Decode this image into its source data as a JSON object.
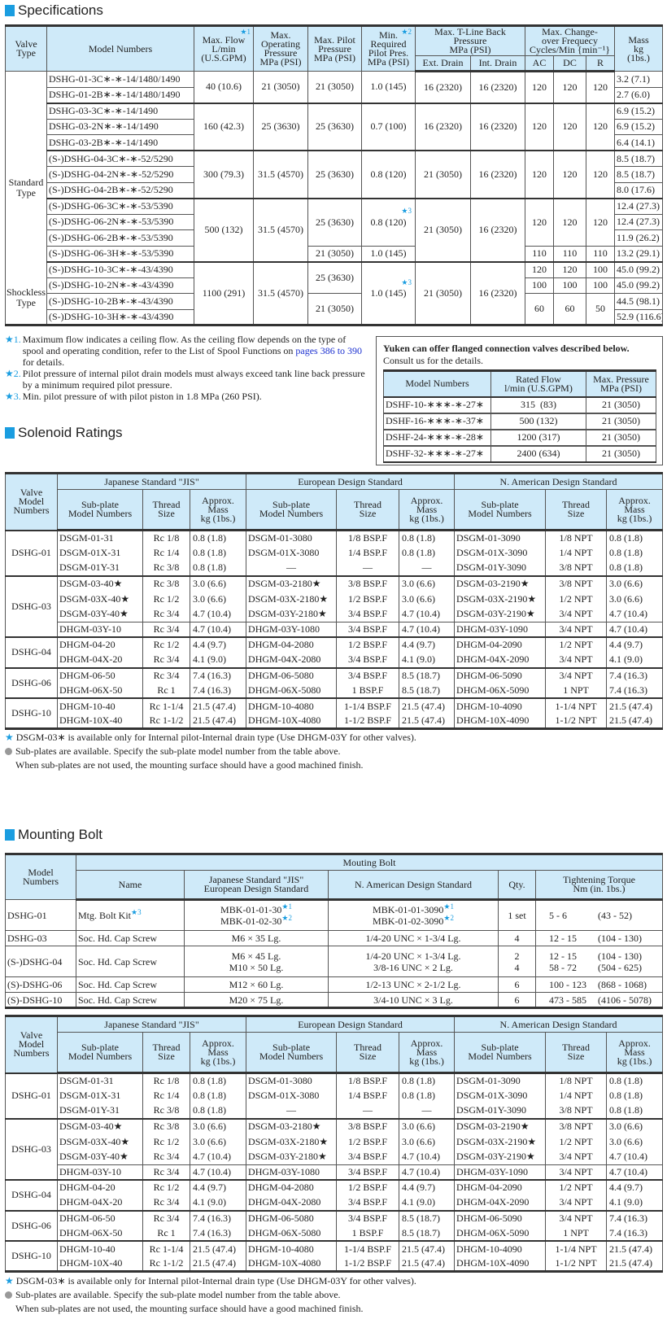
{
  "colors": {
    "accent": "#1a9de0",
    "header_bg": "#cfeaf9",
    "link": "#1a2fd0"
  },
  "specifications": {
    "title": "Specifications",
    "headers": {
      "valve_type": "Valve\nType",
      "model": "Model Numbers",
      "max_flow": "Max. Flow\nL/min\n(U.S.GPM)",
      "max_flow_note": "★1",
      "max_op": "Max.\nOperating\nPressure\nMPa (PSI)",
      "max_pilot": "Max. Pilot\nPressure\nMPa (PSI)",
      "min_pilot": "Min.\nRequired\nPilot Pres.\nMPa (PSI)",
      "min_pilot_note": "★2",
      "tline": "Max. T-Line Back\nPressure\nMPa (PSI)",
      "ext": "Ext. Drain",
      "int": "Int. Drain",
      "freq": "Max. Change-\nover Frequecy\nCycles/Min {min⁻¹}",
      "ac": "AC",
      "dc": "DC",
      "r": "R",
      "mass": "Mass\nkg\n(1bs.)"
    },
    "valve_types": [
      "Standard\nType",
      "Shockless\nType"
    ],
    "models": [
      "DSHG-01-3C∗-∗-14/1480/1490",
      "DSHG-01-2B∗-∗-14/1480/1490",
      "DSHG-03-3C∗-∗-14/1490",
      "DSHG-03-2N∗-∗-14/1490",
      "DSHG-03-2B∗-∗-14/1490",
      "(S-)DSHG-04-3C∗-∗-52/5290",
      "(S-)DSHG-04-2N∗-∗-52/5290",
      "(S-)DSHG-04-2B∗-∗-52/5290",
      "(S-)DSHG-06-3C∗-∗-53/5390",
      "(S-)DSHG-06-2N∗-∗-53/5390",
      "(S-)DSHG-06-2B∗-∗-53/5390",
      "(S-)DSHG-06-3H∗-∗-53/5390",
      "(S-)DSHG-10-3C∗-∗-43/4390",
      "(S-)DSHG-10-2N∗-∗-43/4390",
      "(S-)DSHG-10-2B∗-∗-43/4390",
      "(S-)DSHG-10-3H∗-∗-43/4390"
    ],
    "max_flow": [
      "40 (10.6)",
      "160 (42.3)",
      "300 (79.3)",
      "500 (132)",
      "1100 (291)"
    ],
    "max_op": [
      "21 (3050)",
      "25 (3630)",
      "31.5 (4570)",
      "31.5 (4570)",
      "31.5 (4570)"
    ],
    "max_pilot": [
      "21 (3050)",
      "25 (3630)",
      "25 (3630)",
      "25 (3630)",
      "21 (3050)",
      "25 (3630)",
      "21 (3050)"
    ],
    "min_pilot": [
      "1.0 (145)",
      "0.7 (100)",
      "0.8 (120)",
      "0.8 (120)",
      "1.0 (145)",
      "1.0 (145)"
    ],
    "min_pilot_note": "★3",
    "ext": [
      "16 (2320)",
      "16 (2320)",
      "21 (3050)",
      "21 (3050)",
      "21 (3050)"
    ],
    "int": [
      "16 (2320)",
      "16 (2320)",
      "16 (2320)",
      "16 (2320)",
      "16 (2320)"
    ],
    "freq": [
      [
        "120",
        "120",
        "120"
      ],
      [
        "120",
        "120",
        "120"
      ],
      [
        "120",
        "120",
        "120"
      ],
      [
        "120",
        "120",
        "120"
      ],
      [
        "110",
        "110",
        "110"
      ],
      [
        "120",
        "120",
        "100"
      ],
      [
        "100",
        "100",
        "100"
      ],
      [
        "60",
        "60",
        "50"
      ]
    ],
    "mass": [
      "3.2 (7.1)",
      "2.7 (6.0)",
      "6.9 (15.2)",
      "6.9 (15.2)",
      "6.4 (14.1)",
      "8.5 (18.7)",
      "8.5 (18.7)",
      "8.0 (17.6)",
      "12.4 (27.3)",
      "12.4 (27.3)",
      "11.9 (26.2)",
      "13.2 (29.1)",
      "45.0 (99.2)",
      "45.0 (99.2)",
      "44.5 (98.1)",
      "52.9 (116.6)"
    ],
    "notes": [
      {
        "key": "★1.",
        "a": "Maximum flow indicates a ceiling flow.  As the ceiling flow depends on the type of spool and operating condition, refer to the List of Spool Functions on ",
        "link": "pages 386 to 390",
        "b": " for details."
      },
      {
        "key": "★2.",
        "a": "Pilot pressure of internal pilot drain models must always exceed tank line back pressure by a minimum required pilot pressure."
      },
      {
        "key": "★3.",
        "a": "Min. pilot pressure of with pilot piston in 1.8 MPa (260 PSI)."
      }
    ]
  },
  "flanged": {
    "title": "Yuken can offer flanged connection valves described below.",
    "subtitle": "Consult us for the details.",
    "headers": [
      "Model Numbers",
      "Rated Flow\nl/min (U.S.GPM)",
      "Max. Pressure\nMPa (PSI)"
    ],
    "rows": [
      [
        "DSHF-10-∗∗∗-∗-27∗",
        "315  (83)",
        "21 (3050)"
      ],
      [
        "DSHF-16-∗∗∗-∗-37∗",
        "500 (132)",
        "21 (3050)"
      ],
      [
        "DSHF-24-∗∗∗-∗-28∗",
        "1200 (317)",
        "21 (3050)"
      ],
      [
        "DSHF-32-∗∗∗-∗-27∗",
        "2400 (634)",
        "21 (3050)"
      ]
    ]
  },
  "solenoid": {
    "title": "Solenoid Ratings",
    "headers": {
      "valve": "Valve\nModel\nNumbers",
      "jis": "Japanese Standard \"JIS\"",
      "eu": "European Design Standard",
      "na": "N. American Design Standard",
      "sub": "Sub-plate\nModel Numbers",
      "thread": "Thread\nSize",
      "mass": "Approx.\nMass\nkg (1bs.)"
    },
    "groups": [
      {
        "valve": "DSHG-01",
        "rows": [
          [
            "DSGM-01-31",
            "Rc 1/8",
            "0.8 (1.8)",
            "DSGM-01-3080",
            "1/8 BSP.F",
            "0.8 (1.8)",
            "DSGM-01-3090",
            "1/8 NPT",
            "0.8 (1.8)"
          ],
          [
            "DSGM-01X-31",
            "Rc 1/4",
            "0.8 (1.8)",
            "DSGM-01X-3080",
            "1/4 BSP.F",
            "0.8 (1.8)",
            "DSGM-01X-3090",
            "1/4 NPT",
            "0.8 (1.8)"
          ],
          [
            "DSGM-01Y-31",
            "Rc 3/8",
            "0.8 (1.8)",
            "—",
            "—",
            "—",
            "DSGM-01Y-3090",
            "3/8 NPT",
            "0.8 (1.8)"
          ]
        ]
      },
      {
        "valve": "DSHG-03",
        "rows": [
          [
            "DSGM-03-40★",
            "Rc 3/8",
            "3.0 (6.6)",
            "DSGM-03-2180★",
            "3/8 BSP.F",
            "3.0 (6.6)",
            "DSGM-03-2190★",
            "3/8 NPT",
            "3.0 (6.6)"
          ],
          [
            "DSGM-03X-40★",
            "Rc 1/2",
            "3.0 (6.6)",
            "DSGM-03X-2180★",
            "1/2 BSP.F",
            "3.0 (6.6)",
            "DSGM-03X-2190★",
            "1/2 NPT",
            "3.0 (6.6)"
          ],
          [
            "DSGM-03Y-40★",
            "Rc 3/4",
            "4.7 (10.4)",
            "DSGM-03Y-2180★",
            "3/4 BSP.F",
            "4.7 (10.4)",
            "DSGM-03Y-2190★",
            "3/4 NPT",
            "4.7 (10.4)"
          ],
          [
            "DHGM-03Y-10",
            "Rc 3/4",
            "4.7 (10.4)",
            "DHGM-03Y-1080",
            "3/4 BSP.F",
            "4.7 (10.4)",
            "DHGM-03Y-1090",
            "3/4 NPT",
            "4.7 (10.4)"
          ]
        ]
      },
      {
        "valve": "DSHG-04",
        "rows": [
          [
            "DHGM-04-20",
            "Rc 1/2",
            "4.4 (9.7)",
            "DHGM-04-2080",
            "1/2 BSP.F",
            "4.4 (9.7)",
            "DHGM-04-2090",
            "1/2 NPT",
            "4.4 (9.7)"
          ],
          [
            "DHGM-04X-20",
            "Rc 3/4",
            "4.1 (9.0)",
            "DHGM-04X-2080",
            "3/4 BSP.F",
            "4.1 (9.0)",
            "DHGM-04X-2090",
            "3/4 NPT",
            "4.1 (9.0)"
          ]
        ]
      },
      {
        "valve": "DSHG-06",
        "rows": [
          [
            "DHGM-06-50",
            "Rc 3/4",
            "7.4 (16.3)",
            "DHGM-06-5080",
            "3/4 BSP.F",
            "8.5 (18.7)",
            "DHGM-06-5090",
            "3/4 NPT",
            "7.4 (16.3)"
          ],
          [
            "DHGM-06X-50",
            "Rc 1",
            "7.4 (16.3)",
            "DHGM-06X-5080",
            "1 BSP.F",
            "8.5 (18.7)",
            "DHGM-06X-5090",
            "1 NPT",
            "7.4 (16.3)"
          ]
        ]
      },
      {
        "valve": "DSHG-10",
        "rows": [
          [
            "DHGM-10-40",
            "Rc 1-1/4",
            "21.5 (47.4)",
            "DHGM-10-4080",
            "1-1/4 BSP.F",
            "21.5 (47.4)",
            "DHGM-10-4090",
            "1-1/4 NPT",
            "21.5 (47.4)"
          ],
          [
            "DHGM-10X-40",
            "Rc 1-1/2",
            "21.5 (47.4)",
            "DHGM-10X-4080",
            "1-1/2 BSP.F",
            "21.5 (47.4)",
            "DHGM-10X-4090",
            "1-1/2 NPT",
            "21.5 (47.4)"
          ]
        ]
      }
    ],
    "notes": {
      "star": "★",
      "star_text": "DSGM-03∗ is available only for Internal pilot-Internal drain type (Use DHGM-03Y for other valves).",
      "dot_text": "Sub-plates are available. Specify the sub-plate model number from the table above.",
      "extra": "When sub-plates are not used, the mounting surface should have a good machined finish."
    }
  },
  "mounting_bolt": {
    "title": "Mounting Bolt",
    "headers": {
      "model": "Model\nNumbers",
      "group": "Mouting Bolt",
      "name": "Name",
      "jis": "Japanese Standard \"JIS\"\nEuropean Design Standard",
      "na": "N. American Design Standard",
      "qty": "Qty.",
      "torque": "Tightening Torque\nNm (in. 1bs.)"
    },
    "rows": [
      {
        "model": "DSHG-01",
        "name": "Mtg. Bolt Kit",
        "name_note": "★3",
        "jis": [
          [
            "MBK-01-01-30",
            "★1"
          ],
          [
            "MBK-01-02-30",
            "★2"
          ]
        ],
        "na": [
          [
            "MBK-01-01-3090",
            "★1"
          ],
          [
            "MBK-01-02-3090",
            "★2"
          ]
        ],
        "qty": [
          "1 set"
        ],
        "torque": [
          [
            "5 - 6",
            "(43 - 52)"
          ]
        ]
      },
      {
        "model": "DSHG-03",
        "name": "Soc. Hd. Cap Screw",
        "jis": [
          [
            "M6 × 35 Lg."
          ]
        ],
        "na": [
          [
            "1/4-20 UNC × 1-3/4 Lg."
          ]
        ],
        "qty": [
          "4"
        ],
        "torque": [
          [
            "12 - 15",
            "(104 - 130)"
          ]
        ]
      },
      {
        "model": "(S-)DSHG-04",
        "name": "Soc. Hd. Cap Screw",
        "jis": [
          [
            "M6 × 45 Lg."
          ],
          [
            "M10 × 50 Lg."
          ]
        ],
        "na": [
          [
            "1/4-20 UNC × 1-3/4 Lg."
          ],
          [
            "3/8-16 UNC × 2 Lg."
          ]
        ],
        "qty": [
          "2",
          "4"
        ],
        "torque": [
          [
            "12 - 15",
            "(104 - 130)"
          ],
          [
            "58 - 72",
            "(504 - 625)"
          ]
        ]
      },
      {
        "model": "(S)-DSHG-06",
        "name": "Soc. Hd. Cap Screw",
        "jis": [
          [
            "M12 × 60 Lg."
          ]
        ],
        "na": [
          [
            "1/2-13 UNC × 2-1/2 Lg."
          ]
        ],
        "qty": [
          "6"
        ],
        "torque": [
          [
            "100 - 123",
            "(868 - 1068)"
          ]
        ]
      },
      {
        "model": "(S)-DSHG-10",
        "name": "Soc. Hd. Cap Screw",
        "jis": [
          [
            "M20 × 75 Lg."
          ]
        ],
        "na": [
          [
            "3/4-10 UNC × 3 Lg."
          ]
        ],
        "qty": [
          "6"
        ],
        "torque": [
          [
            "473 - 585",
            "(4106 - 5078)"
          ]
        ]
      }
    ]
  }
}
